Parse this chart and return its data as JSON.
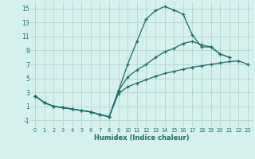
{
  "xlabel": "Humidex (Indice chaleur)",
  "bg_color": "#d6f0ee",
  "grid_color": "#b8d8d4",
  "line_color": "#1a6b6b",
  "xlim": [
    -0.5,
    23.5
  ],
  "ylim": [
    -2.0,
    16.0
  ],
  "xticks": [
    0,
    1,
    2,
    3,
    4,
    5,
    6,
    7,
    8,
    9,
    10,
    11,
    12,
    13,
    14,
    15,
    16,
    17,
    18,
    19,
    20,
    21,
    22,
    23
  ],
  "yticks": [
    -1,
    1,
    3,
    5,
    7,
    9,
    11,
    13,
    15
  ],
  "line1_x": [
    0,
    1,
    2,
    3,
    4,
    5,
    6,
    7,
    8,
    9,
    10,
    11,
    12,
    13,
    14,
    15,
    16,
    17,
    18,
    19,
    20,
    21
  ],
  "line1_y": [
    2.5,
    1.5,
    1.0,
    0.8,
    0.6,
    0.4,
    0.2,
    -0.2,
    -0.5,
    3.2,
    7.0,
    10.3,
    13.5,
    14.7,
    15.3,
    14.8,
    14.2,
    11.2,
    9.5,
    9.5,
    8.5,
    8.0
  ],
  "line2_x": [
    0,
    1,
    2,
    3,
    4,
    5,
    6,
    7,
    8,
    9,
    10,
    11,
    12,
    13,
    14,
    15,
    16,
    17,
    18,
    19,
    20,
    21
  ],
  "line2_y": [
    2.5,
    1.5,
    1.0,
    0.8,
    0.6,
    0.4,
    0.2,
    -0.2,
    -0.5,
    3.2,
    5.2,
    6.2,
    7.0,
    8.0,
    8.8,
    9.3,
    10.0,
    10.3,
    9.8,
    9.5,
    8.5,
    8.0
  ],
  "line3_x": [
    0,
    1,
    2,
    3,
    4,
    5,
    6,
    7,
    8,
    9,
    10,
    11,
    12,
    13,
    14,
    15,
    16,
    17,
    18,
    19,
    20,
    21,
    22,
    23
  ],
  "line3_y": [
    2.5,
    1.5,
    1.0,
    0.8,
    0.6,
    0.4,
    0.2,
    -0.2,
    -0.5,
    2.8,
    3.8,
    4.3,
    4.8,
    5.3,
    5.7,
    6.0,
    6.3,
    6.6,
    6.8,
    7.0,
    7.2,
    7.4,
    7.5,
    7.0
  ]
}
